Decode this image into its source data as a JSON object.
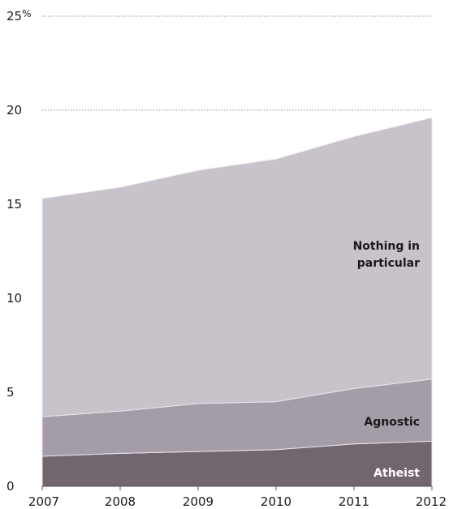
{
  "chart_data": {
    "type": "area",
    "stacked": true,
    "x": [
      "2007",
      "2008",
      "2009",
      "2010",
      "2011",
      "2012"
    ],
    "series": [
      {
        "name": "Atheist",
        "values": [
          1.6,
          1.75,
          1.85,
          1.95,
          2.25,
          2.4
        ],
        "color": "#71656f",
        "label_color": "#ffffff"
      },
      {
        "name": "Agnostic",
        "values": [
          2.1,
          2.25,
          2.55,
          2.55,
          2.95,
          3.3
        ],
        "color": "#a49ca7",
        "label_color": "#1a1a1a"
      },
      {
        "name": "Nothing in particular",
        "label_lines": [
          "Nothing in",
          "particular"
        ],
        "values": [
          11.6,
          11.9,
          12.4,
          12.9,
          13.4,
          13.9
        ],
        "color": "#c8c2cb",
        "label_color": "#1a1a1a"
      }
    ],
    "yticks": [
      "0",
      "5",
      "10",
      "15",
      "20",
      "25"
    ],
    "ytick_values": [
      0,
      5,
      10,
      15,
      20,
      25
    ],
    "unit_suffix": "%",
    "ylim": [
      0,
      25
    ],
    "grid": "dotted horizontal at 20 and 25",
    "legend": "inline labels on areas"
  }
}
